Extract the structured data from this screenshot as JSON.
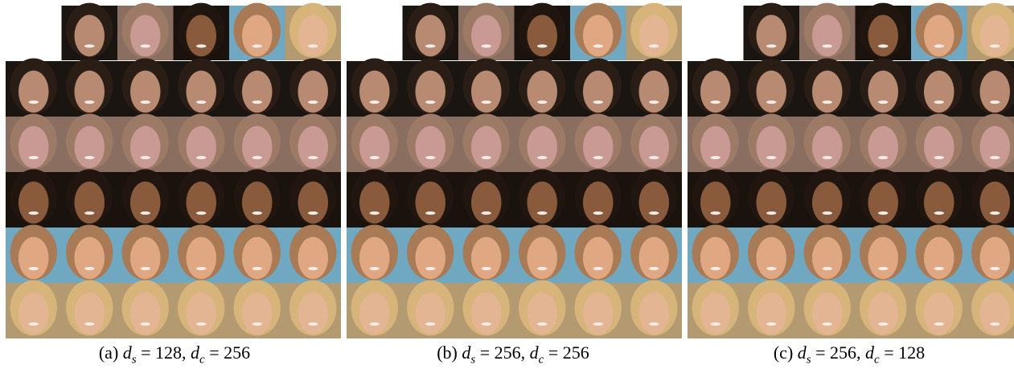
{
  "captions": [
    [
      {
        "text": "(a) "
      },
      {
        "text": "d",
        "italic": true
      },
      {
        "text": "s",
        "sub": true
      },
      {
        "text": " = 128, "
      },
      {
        "text": "d",
        "italic": true
      },
      {
        "text": "c",
        "sub": true
      },
      {
        "text": " = 256"
      }
    ],
    [
      {
        "text": "(b) "
      },
      {
        "text": "d",
        "italic": true
      },
      {
        "text": "s",
        "sub": true
      },
      {
        "text": " = 256, "
      },
      {
        "text": "d",
        "italic": true
      },
      {
        "text": "c",
        "sub": true
      },
      {
        "text": " = 256"
      }
    ],
    [
      {
        "text": "(c) "
      },
      {
        "text": "d",
        "italic": true
      },
      {
        "text": "s",
        "sub": true
      },
      {
        "text": " = 256, "
      },
      {
        "text": "d",
        "italic": true
      },
      {
        "text": "c",
        "sub": true
      },
      {
        "text": " = 128"
      }
    ]
  ]
}
